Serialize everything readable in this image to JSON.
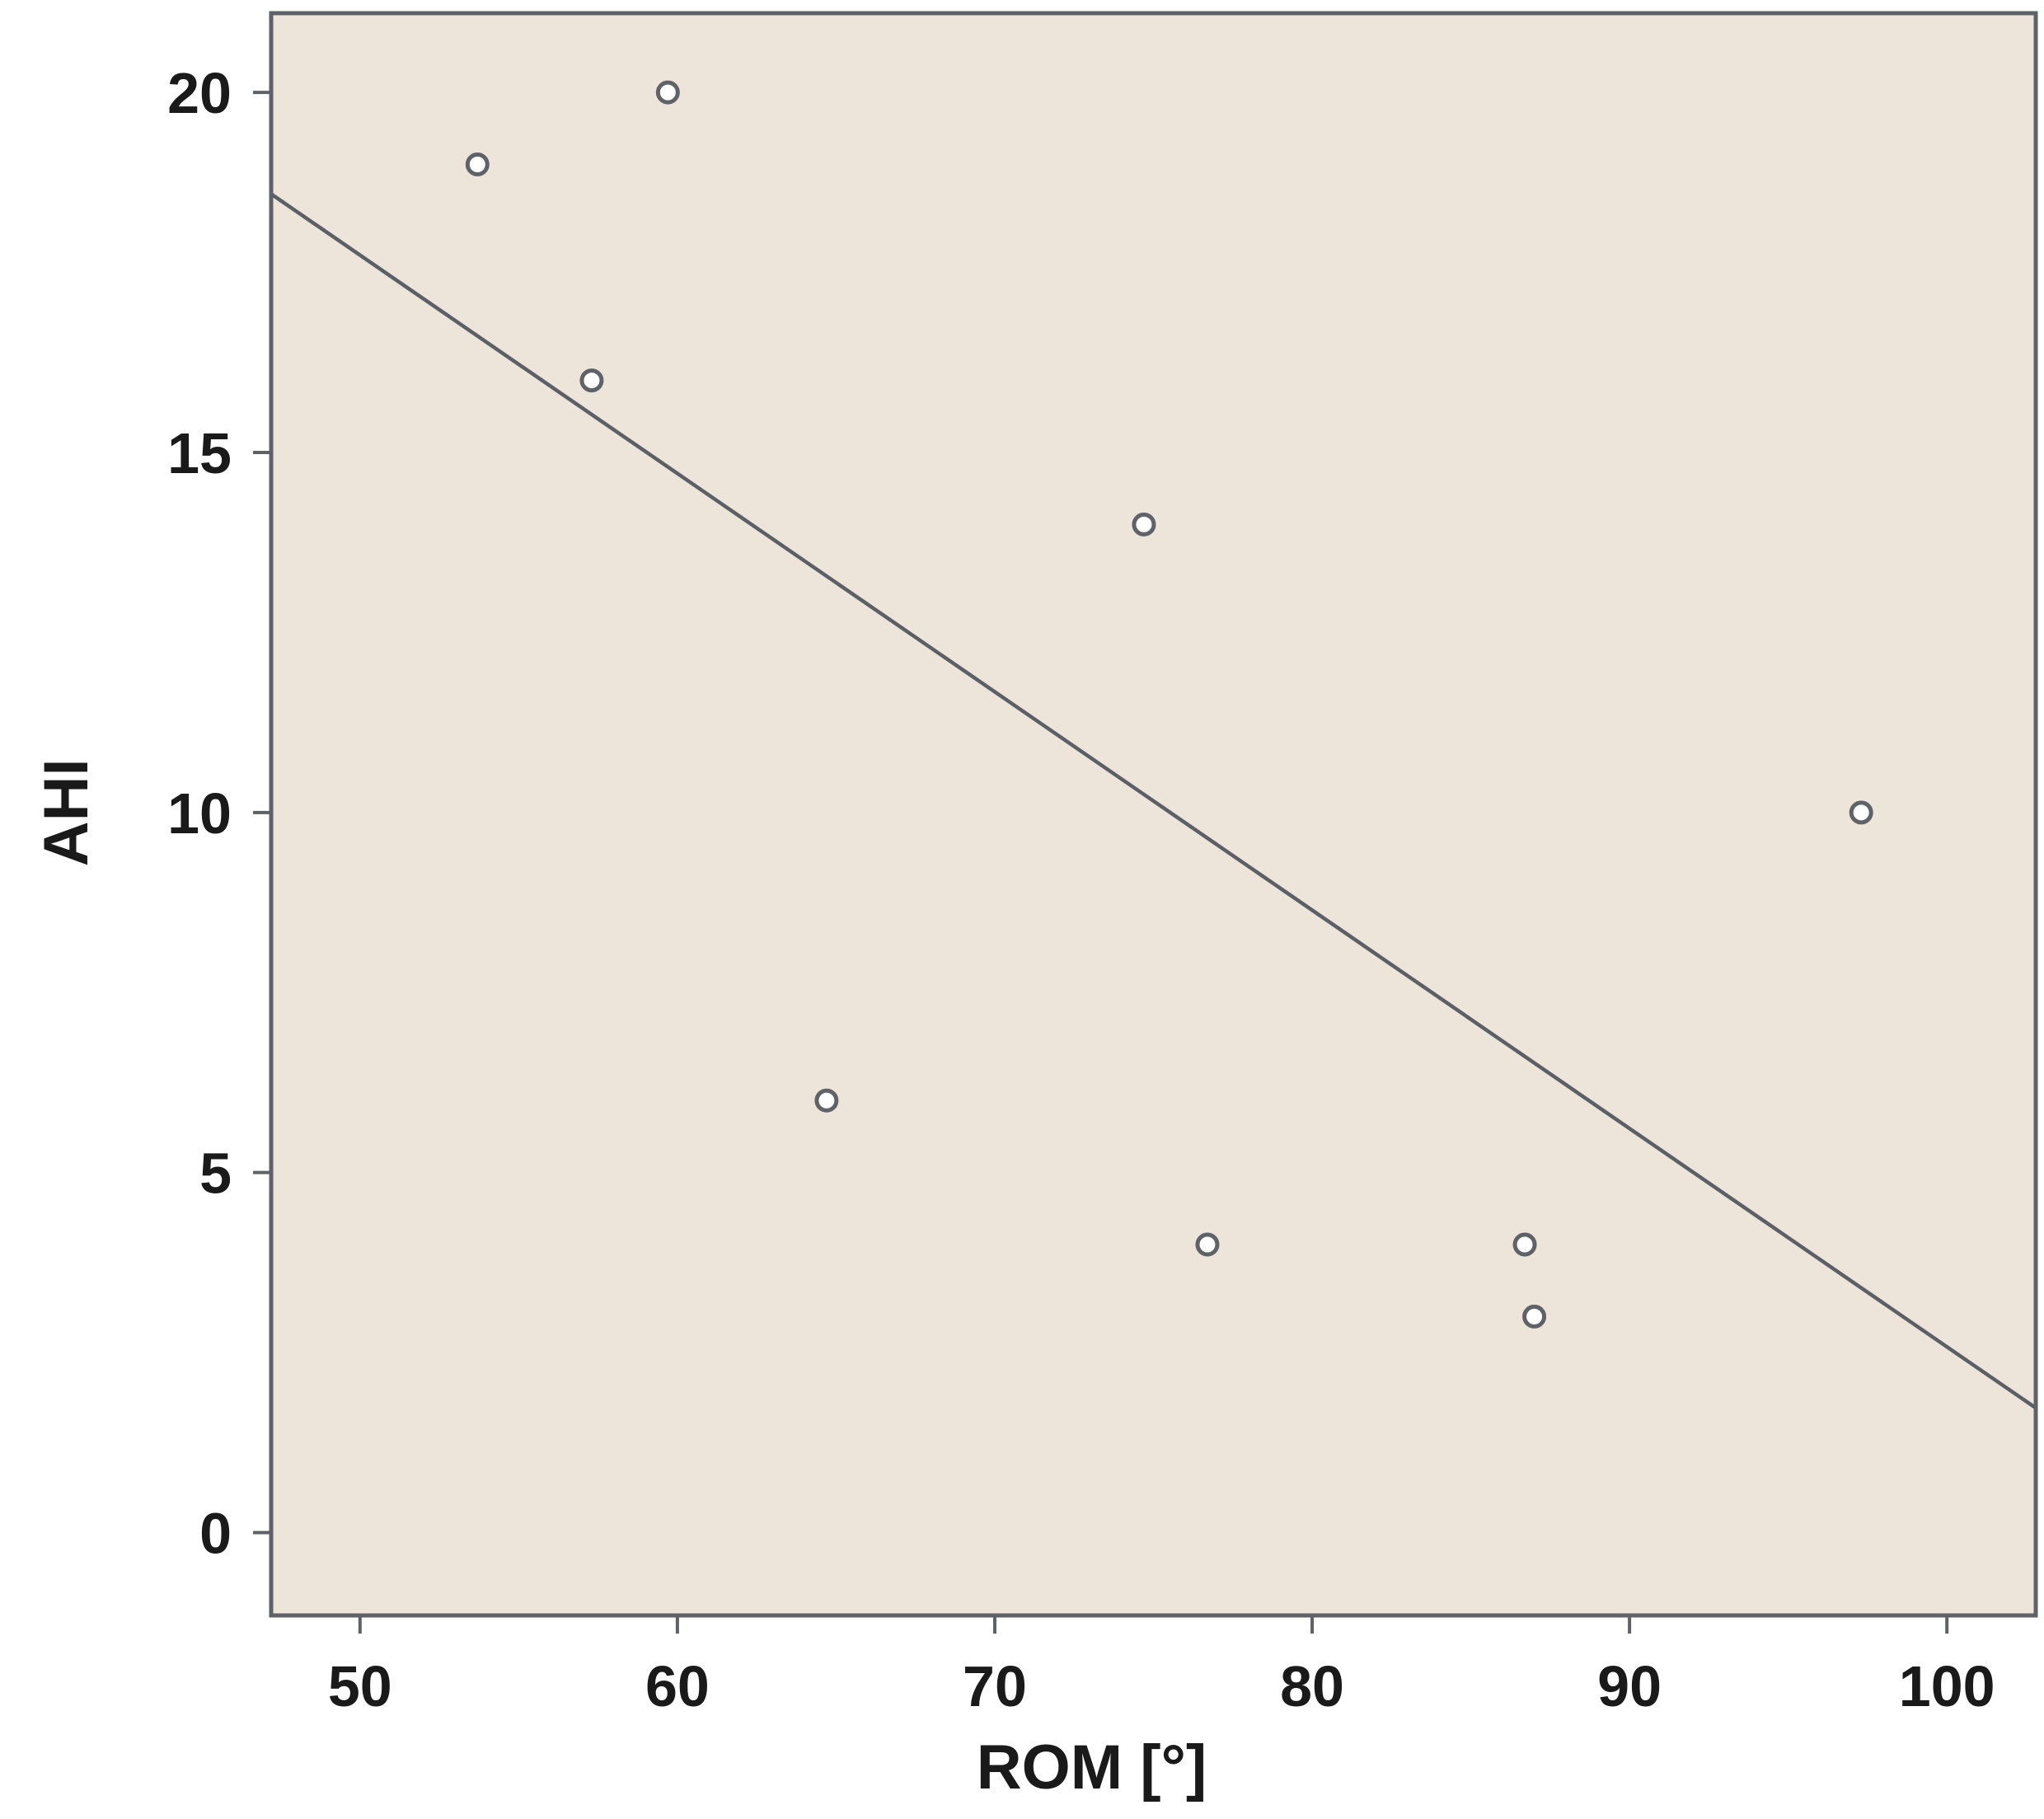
{
  "chart_data": {
    "type": "scatter",
    "title": "",
    "xlabel": "ROM  [°]",
    "ylabel": "AHI",
    "xlim": [
      47.2,
      102.8
    ],
    "ylim": [
      -1.15,
      21.1
    ],
    "x_ticks": [
      50,
      60,
      70,
      80,
      90,
      100
    ],
    "y_ticks": [
      0,
      5,
      10,
      15,
      20
    ],
    "grid": false,
    "legend": "none",
    "points": [
      {
        "x": 53.7,
        "y": 19
      },
      {
        "x": 57.3,
        "y": 16
      },
      {
        "x": 59.7,
        "y": 20
      },
      {
        "x": 64.7,
        "y": 6
      },
      {
        "x": 74.7,
        "y": 14
      },
      {
        "x": 76.7,
        "y": 4
      },
      {
        "x": 86.7,
        "y": 4
      },
      {
        "x": 87.0,
        "y": 3
      },
      {
        "x": 97.3,
        "y": 10
      }
    ],
    "fit_line": {
      "slope": -0.3032,
      "intercept": 32.9
    },
    "colors": {
      "plot_background": "#ede5d9",
      "frame": "#5e6166",
      "marker_stroke": "#5f6368",
      "marker_fill": "#ffffff",
      "fit_line": "#5b6066"
    }
  }
}
